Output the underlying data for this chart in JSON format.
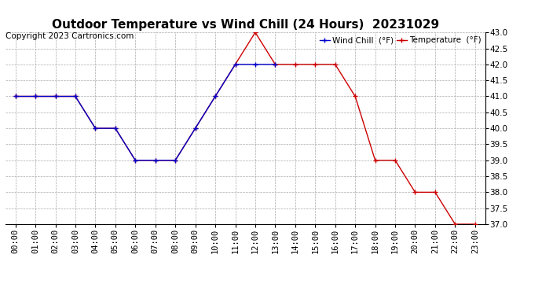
{
  "title": "Outdoor Temperature vs Wind Chill (24 Hours)  20231029",
  "copyright": "Copyright 2023 Cartronics.com",
  "legend_wind_chill": "Wind Chill  (°F)",
  "legend_temperature": "Temperature  (°F)",
  "x_labels": [
    "00:00",
    "01:00",
    "02:00",
    "03:00",
    "04:00",
    "05:00",
    "06:00",
    "07:00",
    "08:00",
    "09:00",
    "10:00",
    "11:00",
    "12:00",
    "13:00",
    "14:00",
    "15:00",
    "16:00",
    "17:00",
    "18:00",
    "19:00",
    "20:00",
    "21:00",
    "22:00",
    "23:00"
  ],
  "temperature_x": [
    0,
    1,
    2,
    3,
    4,
    5,
    6,
    7,
    8,
    9,
    10,
    11,
    12,
    13,
    14,
    15,
    16,
    17,
    18,
    19,
    20,
    21,
    22,
    23
  ],
  "temperature_y": [
    41.0,
    41.0,
    41.0,
    41.0,
    40.0,
    40.0,
    39.0,
    39.0,
    39.0,
    40.0,
    41.0,
    42.0,
    43.0,
    42.0,
    42.0,
    42.0,
    42.0,
    41.0,
    39.0,
    39.0,
    38.0,
    38.0,
    37.0,
    37.0
  ],
  "wind_chill_x": [
    0,
    1,
    2,
    3,
    4,
    5,
    6,
    7,
    8,
    9,
    10,
    11,
    12,
    13
  ],
  "wind_chill_y": [
    41.0,
    41.0,
    41.0,
    41.0,
    40.0,
    40.0,
    39.0,
    39.0,
    39.0,
    40.0,
    41.0,
    42.0,
    42.0,
    42.0
  ],
  "temp_color": "#cc0000",
  "wind_chill_color": "#0000cc",
  "marker": "+",
  "marker_size": 5,
  "linewidth": 1.0,
  "ylim_min": 37.0,
  "ylim_max": 43.0,
  "ytick_step": 0.5,
  "bg_color": "#ffffff",
  "grid_color": "#aaaaaa",
  "title_fontsize": 11,
  "axis_fontsize": 7.5,
  "copyright_fontsize": 7.5,
  "legend_fontsize": 7.5
}
